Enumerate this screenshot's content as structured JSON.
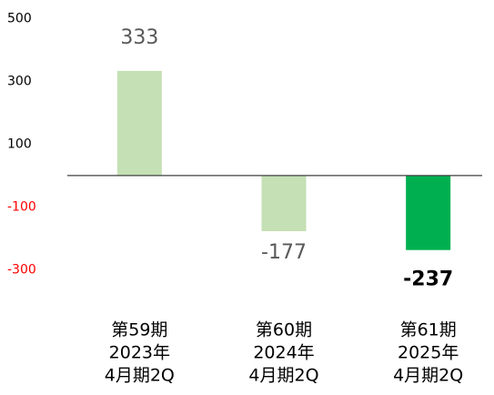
{
  "chart_data": {
    "type": "bar",
    "categories": [
      [
        "第59期",
        "2023年",
        "4月期2Q"
      ],
      [
        "第60期",
        "2024年",
        "4月期2Q"
      ],
      [
        "第61期",
        "2025年",
        "4月期2Q"
      ]
    ],
    "values": [
      333,
      -177,
      -237
    ],
    "colors": [
      "#c5e0b4",
      "#c5e0b4",
      "#00b050"
    ],
    "bold_labels": [
      false,
      false,
      true
    ],
    "ylim": [
      -400,
      550
    ],
    "yticks": [
      500,
      300,
      100,
      -100,
      -300
    ],
    "negative_tick_color": "#ff0000",
    "grid": false
  }
}
